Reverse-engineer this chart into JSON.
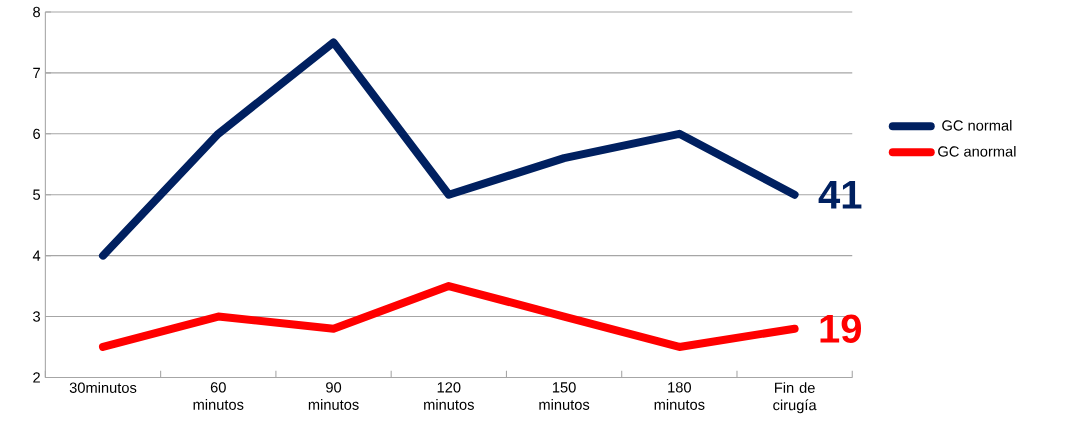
{
  "chart_data": {
    "type": "line",
    "categories": [
      "30minutos",
      "60 minutos",
      "90 minutos",
      "120 minutos",
      "150 minutos",
      "180 minutos",
      "Fin de cirugía"
    ],
    "series": [
      {
        "name": "GC normal",
        "color": "#002060",
        "values": [
          4,
          6,
          7.5,
          5,
          5.6,
          6,
          5
        ]
      },
      {
        "name": "GC anormal",
        "color": "#ff0000",
        "values": [
          2.5,
          3,
          2.8,
          3.5,
          3,
          2.5,
          2.8
        ]
      }
    ],
    "ylim": [
      2,
      8
    ],
    "yticks": [
      2,
      3,
      4,
      5,
      6,
      7,
      8
    ],
    "grid": "y",
    "legend": "right",
    "line_style": "solid",
    "marker": "none",
    "annotations": [
      {
        "text": "41",
        "x": "Fin de cirugía",
        "y": 5
      },
      {
        "text": "19",
        "x": "Fin de cirugía",
        "y": 2.8
      }
    ]
  }
}
